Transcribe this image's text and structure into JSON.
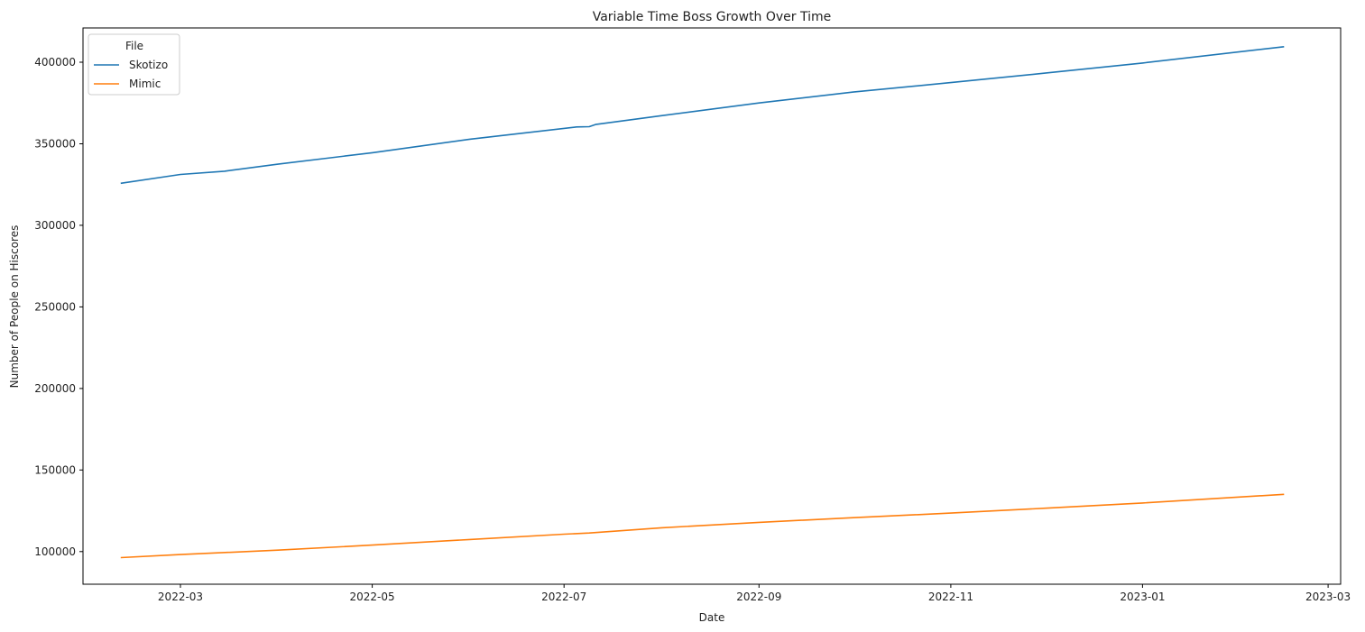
{
  "chart_data": {
    "type": "line",
    "title": "Variable Time Boss Growth Over Time",
    "xlabel": "Date",
    "ylabel": "Number of People on Hiscores",
    "x_ticks": [
      "2022-03",
      "2022-05",
      "2022-07",
      "2022-09",
      "2022-11",
      "2023-01",
      "2023-03"
    ],
    "y_ticks": [
      100000,
      150000,
      200000,
      250000,
      300000,
      350000,
      400000
    ],
    "xlim": [
      "2022-01-29",
      "2023-03-05"
    ],
    "ylim": [
      80000,
      421000
    ],
    "grid": false,
    "legend": {
      "title": "File",
      "placement": "top-left"
    },
    "series": [
      {
        "name": "Skotizo",
        "color": "#1f77b4",
        "points": [
          [
            "2022-02-10",
            325800
          ],
          [
            "2022-03-01",
            331200
          ],
          [
            "2022-03-15",
            333200
          ],
          [
            "2022-04-01",
            337500
          ],
          [
            "2022-05-01",
            344500
          ],
          [
            "2022-06-01",
            352800
          ],
          [
            "2022-07-05",
            360300
          ],
          [
            "2022-07-09",
            360500
          ],
          [
            "2022-07-11",
            361800
          ],
          [
            "2022-08-01",
            367200
          ],
          [
            "2022-09-01",
            375000
          ],
          [
            "2022-10-01",
            381700
          ],
          [
            "2022-11-01",
            387500
          ],
          [
            "2022-12-01",
            393300
          ],
          [
            "2023-01-01",
            399500
          ],
          [
            "2023-02-15",
            409500
          ]
        ]
      },
      {
        "name": "Mimic",
        "color": "#ff7f0e",
        "points": [
          [
            "2022-02-10",
            96300
          ],
          [
            "2022-03-01",
            98200
          ],
          [
            "2022-04-01",
            100900
          ],
          [
            "2022-05-01",
            104000
          ],
          [
            "2022-06-01",
            107400
          ],
          [
            "2022-07-01",
            110700
          ],
          [
            "2022-07-09",
            111400
          ],
          [
            "2022-08-01",
            114600
          ],
          [
            "2022-09-01",
            117900
          ],
          [
            "2022-10-01",
            120800
          ],
          [
            "2022-11-01",
            123600
          ],
          [
            "2022-12-01",
            126600
          ],
          [
            "2023-01-01",
            129800
          ],
          [
            "2023-02-15",
            135100
          ]
        ]
      }
    ]
  }
}
